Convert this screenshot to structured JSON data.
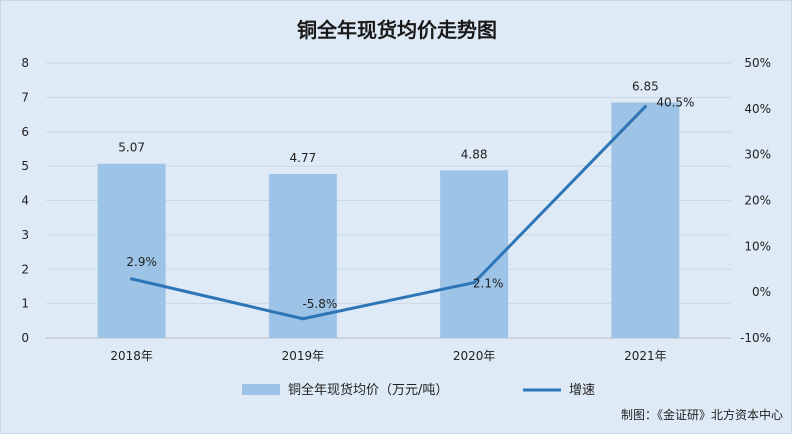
{
  "chart_data": {
    "type": "bar",
    "title": "铜全年现货均价走势图",
    "categories": [
      "2018年",
      "2019年",
      "2020年",
      "2021年"
    ],
    "series": [
      {
        "name": "铜全年现货均价（万元/吨）",
        "type": "bar",
        "axis": "left",
        "values": [
          5.07,
          4.77,
          4.88,
          6.85
        ],
        "labels": [
          "5.07",
          "4.77",
          "4.88",
          "6.85"
        ],
        "color": "#9dc3e6"
      },
      {
        "name": "增速",
        "type": "line",
        "axis": "right",
        "values": [
          2.9,
          -5.8,
          2.1,
          40.5
        ],
        "labels": [
          "2.9%",
          "-5.8%",
          "2.1%",
          "40.5%"
        ],
        "color": "#2e75b6"
      }
    ],
    "y_left": {
      "ylim": [
        0,
        8
      ],
      "ticks": [
        "0",
        "1",
        "2",
        "3",
        "4",
        "5",
        "6",
        "7",
        "8"
      ]
    },
    "y_right": {
      "ylim": [
        -10,
        50
      ],
      "ticks": [
        "-10%",
        "0%",
        "10%",
        "20%",
        "30%",
        "40%",
        "50%"
      ]
    },
    "grid": true,
    "legend_position": "bottom-center",
    "source": "制图：《金证研》北方资本中心"
  }
}
